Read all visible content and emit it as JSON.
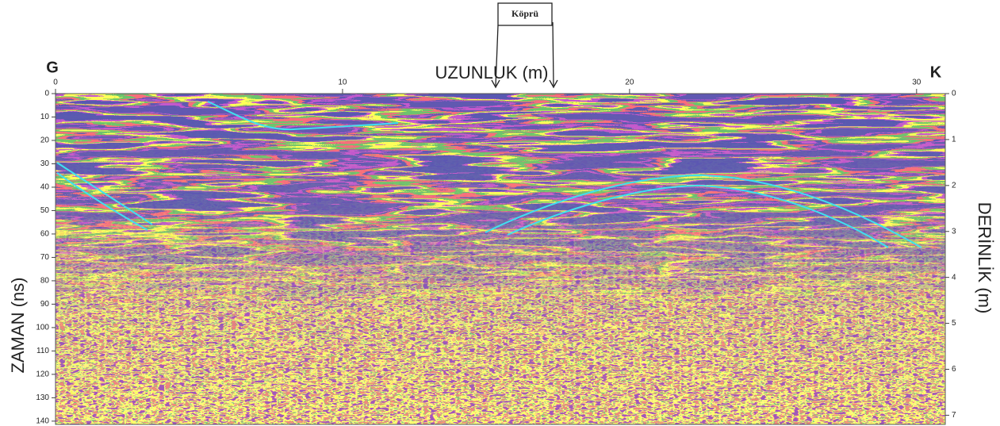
{
  "chart_data": {
    "type": "radargram",
    "left_label": "G",
    "right_label": "K",
    "xlabel": "UZUNLUK (m)",
    "ylabel": "ZAMAN (ns)",
    "y2label": "DERİNLİK (m)",
    "annotation": "Köprü",
    "xlim": [
      0,
      31
    ],
    "xticks": [
      0,
      10,
      20,
      30
    ],
    "ylim": [
      0,
      141.4
    ],
    "yticks": [
      0,
      10,
      20,
      30,
      40,
      50,
      60,
      70,
      80,
      90,
      100,
      110,
      120,
      130,
      140
    ],
    "y2lim": [
      0,
      7.2
    ],
    "y2ticks": [
      0,
      1,
      2,
      3,
      4,
      5,
      6,
      7
    ]
  }
}
